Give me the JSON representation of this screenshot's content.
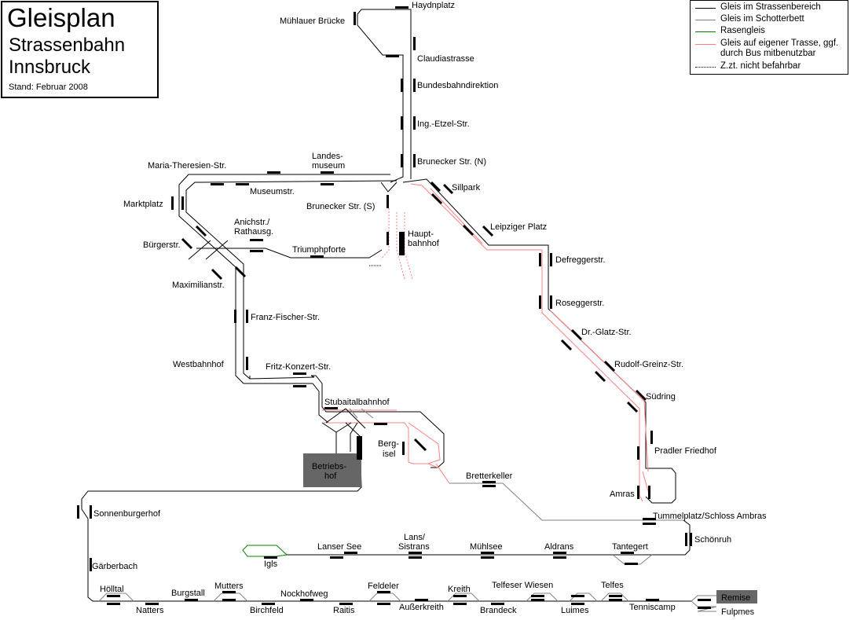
{
  "title": {
    "line1": "Gleisplan",
    "line2": "Strassenbahn",
    "line3": "Innsbruck",
    "stand": "Stand: Februar 2008"
  },
  "legend": [
    {
      "label": "Gleis im Strassenbereich",
      "color": "#000000",
      "style": "solid"
    },
    {
      "label": "Gleis im Schotterbett",
      "color": "#808080",
      "style": "solid"
    },
    {
      "label": "Rasengleis",
      "color": "#008000",
      "style": "solid"
    },
    {
      "label": "Gleis auf eigener Trasse, ggf. durch Bus mitbenutzbar",
      "color": "#ff8080",
      "style": "solid"
    },
    {
      "label": "Z.zt. nicht befahrbar",
      "color": "#000000",
      "style": "dotted"
    }
  ],
  "stations": {
    "haydnplatz": "Haydnplatz",
    "muehlauer_bruecke": "Mühlauer Brücke",
    "claudiastrasse": "Claudiastrasse",
    "bundesbahndirektion": "Bundesbahndirektion",
    "ing_etzel": "Ing.-Etzel-Str.",
    "brunecker_n": "Brunecker Str. (N)",
    "landesmuseum_1": "Landes-",
    "landesmuseum_2": "museum",
    "maria_theresien": "Maria-Theresien-Str.",
    "museumstr": "Museumstr.",
    "sillpark": "Sillpark",
    "brunecker_s": "Brunecker Str. (S)",
    "marktplatz": "Marktplatz",
    "anichstr_1": "Anichstr./",
    "anichstr_2": "Rathausg.",
    "hauptbahnhof_1": "Haupt-",
    "hauptbahnhof_2": "bahnhof",
    "leipziger_platz": "Leipziger Platz",
    "buergerstr": "Bürgerstr.",
    "triumphpforte": "Triumphpforte",
    "defreggerstr": "Defreggerstr.",
    "maximilianstr": "Maximilianstr.",
    "roseggerstr": "Roseggerstr.",
    "franz_fischer": "Franz-Fischer-Str.",
    "dr_glatz": "Dr.-Glatz-Str.",
    "rudolf_greinz": "Rudolf-Greinz-Str.",
    "westbahnhof": "Westbahnhof",
    "fritz_konzert": "Fritz-Konzert-Str.",
    "suedring": "Südring",
    "stubaitalbahnhof": "Stubaitalbahnhof",
    "bergisel_1": "Berg-",
    "bergisel_2": "isel",
    "pradler_friedhof": "Pradler Friedhof",
    "betriebshof_1": "Betriebs-",
    "betriebshof_2": "hof",
    "bretterkeller": "Bretterkeller",
    "amras": "Amras",
    "sonnenburgerhof": "Sonnenburgerhof",
    "tummelplatz": "Tummelplatz/Schloss Ambras",
    "schoenruh": "Schönruh",
    "lanser_see": "Lanser See",
    "lans_1": "Lans/",
    "lans_2": "Sistrans",
    "muehlsee": "Mühlsee",
    "aldrans": "Aldrans",
    "tantegert": "Tantegert",
    "igls": "Igls",
    "gaerberbach": "Gärberbach",
    "hoelltal": "Hölltal",
    "mutters": "Mutters",
    "burgstall": "Burgstall",
    "nockhofweg": "Nockhofweg",
    "feldeler": "Feldeler",
    "kreith": "Kreith",
    "telfeser_wiesen": "Telfeser Wiesen",
    "telfes": "Telfes",
    "remise": "Remise",
    "natters": "Natters",
    "birchfeld": "Birchfeld",
    "raitis": "Raitis",
    "ausserkreith": "Außerkreith",
    "brandeck": "Brandeck",
    "luimes": "Luimes",
    "tenniscamp": "Tenniscamp",
    "fulpmes": "Fulpmes"
  },
  "colors": {
    "street": "#000000",
    "ballast": "#808080",
    "grass": "#008000",
    "own_track": "#ff8080",
    "depot": "#666666"
  }
}
